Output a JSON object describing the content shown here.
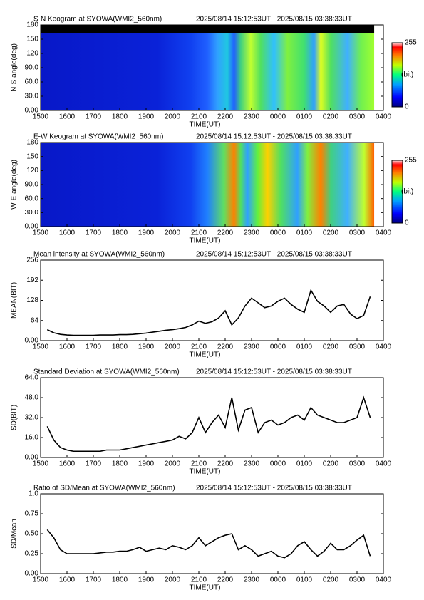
{
  "chart_data": [
    {
      "type": "image",
      "title": "S-N Keogram at SYOWA(WMI2_560nm)",
      "subtitle": "2025/08/14 15:12:53UT - 2025/08/15 03:38:33UT",
      "ylabel": "N-S angle(deg)",
      "xlabel": "TIME(UT)",
      "ylim": [
        0,
        180
      ],
      "yticks": [
        {
          "value": 0,
          "label": "0.00"
        },
        {
          "value": 30,
          "label": "30.0"
        },
        {
          "value": 60,
          "label": "60.0"
        },
        {
          "value": 90,
          "label": "90.0"
        },
        120,
        150,
        180
      ],
      "xlim": [
        15,
        28
      ],
      "xticks": [
        {
          "value": 15,
          "label": "1500"
        },
        {
          "value": 16,
          "label": "1600"
        },
        {
          "value": 17,
          "label": "1700"
        },
        {
          "value": 18,
          "label": "1800"
        },
        {
          "value": 19,
          "label": "1900"
        },
        {
          "value": 20,
          "label": "2000"
        },
        {
          "value": 21,
          "label": "2100"
        },
        {
          "value": 22,
          "label": "2200"
        },
        {
          "value": 23,
          "label": "2300"
        },
        {
          "value": 24,
          "label": "0000"
        },
        {
          "value": 25,
          "label": "0100"
        },
        {
          "value": 26,
          "label": "0200"
        },
        {
          "value": 27,
          "label": "0300"
        },
        {
          "value": 28,
          "label": "0400"
        }
      ],
      "clim": [
        0,
        255
      ],
      "colorbar_label": "(bit)"
    },
    {
      "type": "image",
      "title": "E-W Keogram at SYOWA(WMI2_560nm)",
      "subtitle": "2025/08/14 15:12:53UT - 2025/08/15 03:38:33UT",
      "ylabel": "W-E angle(deg)",
      "xlabel": "TIME(UT)",
      "ylim": [
        0,
        180
      ],
      "yticks": [
        {
          "value": 0,
          "label": "0.00"
        },
        {
          "value": 30,
          "label": "30.0"
        },
        {
          "value": 60,
          "label": "60.0"
        },
        {
          "value": 90,
          "label": "90.0"
        },
        120,
        150,
        180
      ],
      "xlim": [
        15,
        28
      ],
      "xticks": [
        {
          "value": 15,
          "label": "1500"
        },
        {
          "value": 16,
          "label": "1600"
        },
        {
          "value": 17,
          "label": "1700"
        },
        {
          "value": 18,
          "label": "1800"
        },
        {
          "value": 19,
          "label": "1900"
        },
        {
          "value": 20,
          "label": "2000"
        },
        {
          "value": 21,
          "label": "2100"
        },
        {
          "value": 22,
          "label": "2200"
        },
        {
          "value": 23,
          "label": "2300"
        },
        {
          "value": 24,
          "label": "0000"
        },
        {
          "value": 25,
          "label": "0100"
        },
        {
          "value": 26,
          "label": "0200"
        },
        {
          "value": 27,
          "label": "0300"
        },
        {
          "value": 28,
          "label": "0400"
        }
      ],
      "clim": [
        0,
        255
      ],
      "colorbar_label": "(bit)"
    },
    {
      "type": "line",
      "title": "Mean intensity at SYOWA(WMI2_560nm)",
      "subtitle": "2025/08/14 15:12:53UT - 2025/08/15 03:38:33UT",
      "ylabel": "MEAN(BIT)",
      "xlabel": "TIME(UT)",
      "color": "#000000",
      "ylim": [
        0,
        256
      ],
      "yticks": [
        {
          "value": 0,
          "label": "0.00"
        },
        64,
        128,
        192,
        256
      ],
      "xlim": [
        15,
        28
      ],
      "xticks": [
        {
          "value": 15,
          "label": "1500"
        },
        {
          "value": 16,
          "label": "1600"
        },
        {
          "value": 17,
          "label": "1700"
        },
        {
          "value": 18,
          "label": "1800"
        },
        {
          "value": 19,
          "label": "1900"
        },
        {
          "value": 20,
          "label": "2000"
        },
        {
          "value": 21,
          "label": "2100"
        },
        {
          "value": 22,
          "label": "2200"
        },
        {
          "value": 23,
          "label": "2300"
        },
        {
          "value": 24,
          "label": "0000"
        },
        {
          "value": 25,
          "label": "0100"
        },
        {
          "value": 26,
          "label": "0200"
        },
        {
          "value": 27,
          "label": "0300"
        },
        {
          "value": 28,
          "label": "0400"
        }
      ],
      "x": [
        15.25,
        15.5,
        15.75,
        16,
        16.25,
        16.5,
        16.75,
        17,
        17.25,
        17.5,
        17.75,
        18,
        18.25,
        18.5,
        18.75,
        19,
        19.25,
        19.5,
        19.75,
        20,
        20.25,
        20.5,
        20.75,
        21,
        21.25,
        21.5,
        21.75,
        22,
        22.25,
        22.5,
        22.75,
        23,
        23.25,
        23.5,
        23.75,
        24,
        24.25,
        24.5,
        24.75,
        25,
        25.25,
        25.5,
        25.75,
        26,
        26.25,
        26.5,
        26.75,
        27,
        27.25,
        27.5
      ],
      "values": [
        35,
        25,
        20,
        18,
        17,
        17,
        17,
        17,
        18,
        18,
        18,
        19,
        19,
        20,
        22,
        24,
        27,
        30,
        33,
        35,
        38,
        42,
        50,
        62,
        55,
        60,
        72,
        95,
        50,
        72,
        110,
        135,
        120,
        105,
        110,
        125,
        135,
        115,
        100,
        90,
        160,
        125,
        110,
        90,
        110,
        115,
        85,
        70,
        80,
        140
      ]
    },
    {
      "type": "line",
      "title": "Standard Deviation at SYOWA(WMI2_560nm)",
      "subtitle": "2025/08/14 15:12:53UT - 2025/08/15 03:38:33UT",
      "ylabel": "SD(BIT)",
      "xlabel": "TIME(UT)",
      "color": "#000000",
      "ylim": [
        0,
        64
      ],
      "yticks": [
        {
          "value": 0,
          "label": "0.00"
        },
        {
          "value": 16,
          "label": "16.0"
        },
        {
          "value": 32,
          "label": "32.0"
        },
        {
          "value": 48,
          "label": "48.0"
        },
        {
          "value": 64,
          "label": "64.0"
        }
      ],
      "xlim": [
        15,
        28
      ],
      "xticks": [
        {
          "value": 15,
          "label": "1500"
        },
        {
          "value": 16,
          "label": "1600"
        },
        {
          "value": 17,
          "label": "1700"
        },
        {
          "value": 18,
          "label": "1800"
        },
        {
          "value": 19,
          "label": "1900"
        },
        {
          "value": 20,
          "label": "2000"
        },
        {
          "value": 21,
          "label": "2100"
        },
        {
          "value": 22,
          "label": "2200"
        },
        {
          "value": 23,
          "label": "2300"
        },
        {
          "value": 24,
          "label": "0000"
        },
        {
          "value": 25,
          "label": "0100"
        },
        {
          "value": 26,
          "label": "0200"
        },
        {
          "value": 27,
          "label": "0300"
        },
        {
          "value": 28,
          "label": "0400"
        }
      ],
      "x": [
        15.25,
        15.5,
        15.75,
        16,
        16.25,
        16.5,
        16.75,
        17,
        17.25,
        17.5,
        17.75,
        18,
        18.25,
        18.5,
        18.75,
        19,
        19.25,
        19.5,
        19.75,
        20,
        20.25,
        20.5,
        20.75,
        21,
        21.25,
        21.5,
        21.75,
        22,
        22.25,
        22.5,
        22.75,
        23,
        23.25,
        23.5,
        23.75,
        24,
        24.25,
        24.5,
        24.75,
        25,
        25.25,
        25.5,
        25.75,
        26,
        26.25,
        26.5,
        26.75,
        27,
        27.25,
        27.5
      ],
      "values": [
        25,
        14,
        8,
        6,
        5,
        5,
        5,
        5,
        5,
        6,
        6,
        6,
        7,
        8,
        9,
        10,
        11,
        12,
        13,
        14,
        17,
        15,
        20,
        32,
        20,
        28,
        34,
        24,
        48,
        22,
        38,
        40,
        20,
        28,
        30,
        26,
        28,
        32,
        34,
        30,
        40,
        34,
        32,
        30,
        28,
        28,
        30,
        32,
        48,
        32
      ]
    },
    {
      "type": "line",
      "title": "Ratio of SD/Mean at SYOWA(WMI2_560nm)",
      "subtitle": "2025/08/14 15:12:53UT - 2025/08/15 03:38:33UT",
      "ylabel": "SD/Mean",
      "xlabel": "TIME(UT)",
      "color": "#000000",
      "ylim": [
        0,
        1
      ],
      "yticks": [
        {
          "value": 0,
          "label": "0.00"
        },
        0.25,
        {
          "value": 0.5,
          "label": "0.50"
        },
        0.75,
        {
          "value": 1,
          "label": "1.0"
        }
      ],
      "xlim": [
        15,
        28
      ],
      "xticks": [
        {
          "value": 15,
          "label": "1500"
        },
        {
          "value": 16,
          "label": "1600"
        },
        {
          "value": 17,
          "label": "1700"
        },
        {
          "value": 18,
          "label": "1800"
        },
        {
          "value": 19,
          "label": "1900"
        },
        {
          "value": 20,
          "label": "2000"
        },
        {
          "value": 21,
          "label": "2100"
        },
        {
          "value": 22,
          "label": "2200"
        },
        {
          "value": 23,
          "label": "2300"
        },
        {
          "value": 24,
          "label": "0000"
        },
        {
          "value": 25,
          "label": "0100"
        },
        {
          "value": 26,
          "label": "0200"
        },
        {
          "value": 27,
          "label": "0300"
        },
        {
          "value": 28,
          "label": "0400"
        }
      ],
      "x": [
        15.25,
        15.5,
        15.75,
        16,
        16.25,
        16.5,
        16.75,
        17,
        17.25,
        17.5,
        17.75,
        18,
        18.25,
        18.5,
        18.75,
        19,
        19.25,
        19.5,
        19.75,
        20,
        20.25,
        20.5,
        20.75,
        21,
        21.25,
        21.5,
        21.75,
        22,
        22.25,
        22.5,
        22.75,
        23,
        23.25,
        23.5,
        23.75,
        24,
        24.25,
        24.5,
        24.75,
        25,
        25.25,
        25.5,
        25.75,
        26,
        26.25,
        26.5,
        26.75,
        27,
        27.25,
        27.5
      ],
      "values": [
        0.55,
        0.45,
        0.3,
        0.25,
        0.25,
        0.25,
        0.25,
        0.25,
        0.26,
        0.27,
        0.27,
        0.28,
        0.28,
        0.3,
        0.33,
        0.28,
        0.3,
        0.32,
        0.3,
        0.35,
        0.33,
        0.3,
        0.35,
        0.45,
        0.35,
        0.4,
        0.45,
        0.48,
        0.5,
        0.3,
        0.35,
        0.3,
        0.22,
        0.25,
        0.28,
        0.22,
        0.2,
        0.25,
        0.35,
        0.4,
        0.3,
        0.22,
        0.28,
        0.38,
        0.3,
        0.3,
        0.35,
        0.42,
        0.48,
        0.22
      ]
    }
  ]
}
